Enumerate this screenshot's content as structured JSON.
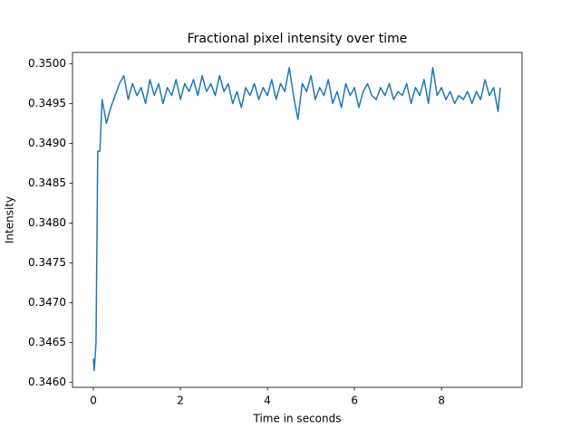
{
  "chart_data": {
    "type": "line",
    "title": "Fractional pixel intensity over time",
    "x_label": "Time in seconds",
    "y_label": "Intensity",
    "x": [
      0,
      0.02,
      0.06,
      0.1,
      0.15,
      0.2,
      0.3,
      0.4,
      0.5,
      0.6,
      0.7,
      0.8,
      0.9,
      1.0,
      1.1,
      1.2,
      1.3,
      1.4,
      1.5,
      1.6,
      1.7,
      1.8,
      1.9,
      2.0,
      2.1,
      2.2,
      2.3,
      2.4,
      2.5,
      2.6,
      2.7,
      2.8,
      2.9,
      3.0,
      3.1,
      3.2,
      3.3,
      3.4,
      3.5,
      3.6,
      3.7,
      3.8,
      3.9,
      4.0,
      4.1,
      4.2,
      4.3,
      4.4,
      4.5,
      4.6,
      4.7,
      4.8,
      4.9,
      5.0,
      5.1,
      5.2,
      5.3,
      5.4,
      5.5,
      5.6,
      5.7,
      5.8,
      5.9,
      6.0,
      6.1,
      6.2,
      6.3,
      6.4,
      6.5,
      6.6,
      6.7,
      6.8,
      6.9,
      7.0,
      7.1,
      7.2,
      7.3,
      7.4,
      7.5,
      7.6,
      7.7,
      7.8,
      7.9,
      8.0,
      8.1,
      8.2,
      8.3,
      8.4,
      8.5,
      8.6,
      8.7,
      8.8,
      8.9,
      9.0,
      9.1,
      9.2,
      9.3,
      9.35
    ],
    "series": [
      {
        "name": "Intensity",
        "color": "#1f77b4",
        "values": [
          0.3463,
          0.34615,
          0.3465,
          0.3489,
          0.3489,
          0.34955,
          0.34925,
          0.34945,
          0.3496,
          0.34975,
          0.34985,
          0.34955,
          0.34975,
          0.3496,
          0.3497,
          0.3495,
          0.3498,
          0.3496,
          0.34975,
          0.3495,
          0.3497,
          0.3496,
          0.3498,
          0.34955,
          0.34975,
          0.34965,
          0.3498,
          0.3496,
          0.34985,
          0.34965,
          0.34975,
          0.3496,
          0.34985,
          0.34965,
          0.34975,
          0.3495,
          0.34965,
          0.34945,
          0.3497,
          0.3496,
          0.34975,
          0.34955,
          0.3497,
          0.3496,
          0.3498,
          0.34955,
          0.34975,
          0.34965,
          0.34995,
          0.3496,
          0.3493,
          0.34975,
          0.34965,
          0.34985,
          0.34955,
          0.3497,
          0.3496,
          0.3498,
          0.3495,
          0.34965,
          0.34945,
          0.34975,
          0.3496,
          0.3497,
          0.34945,
          0.34965,
          0.34975,
          0.3496,
          0.34955,
          0.3497,
          0.3496,
          0.34975,
          0.34955,
          0.34965,
          0.3496,
          0.34975,
          0.3495,
          0.3497,
          0.3496,
          0.3498,
          0.3495,
          0.34995,
          0.3496,
          0.3497,
          0.34955,
          0.34965,
          0.3495,
          0.3496,
          0.34955,
          0.34965,
          0.3495,
          0.34965,
          0.34955,
          0.3498,
          0.3496,
          0.3497,
          0.3494,
          0.3497
        ]
      }
    ],
    "xlim": [
      -0.48,
      9.85
    ],
    "xticks": [
      0,
      2,
      4,
      6,
      8
    ],
    "ylim": [
      0.34594,
      0.35014
    ],
    "yticks": [
      {
        "value": 0.346,
        "label": "0.3460"
      },
      {
        "value": 0.3465,
        "label": "0.3465"
      },
      {
        "value": 0.347,
        "label": "0.3470"
      },
      {
        "value": 0.3475,
        "label": "0.3475"
      },
      {
        "value": 0.348,
        "label": "0.3480"
      },
      {
        "value": 0.3485,
        "label": "0.3485"
      },
      {
        "value": 0.349,
        "label": "0.3490"
      },
      {
        "value": 0.3495,
        "label": "0.3495"
      },
      {
        "value": 0.35,
        "label": "0.3500"
      }
    ],
    "grid": false
  }
}
